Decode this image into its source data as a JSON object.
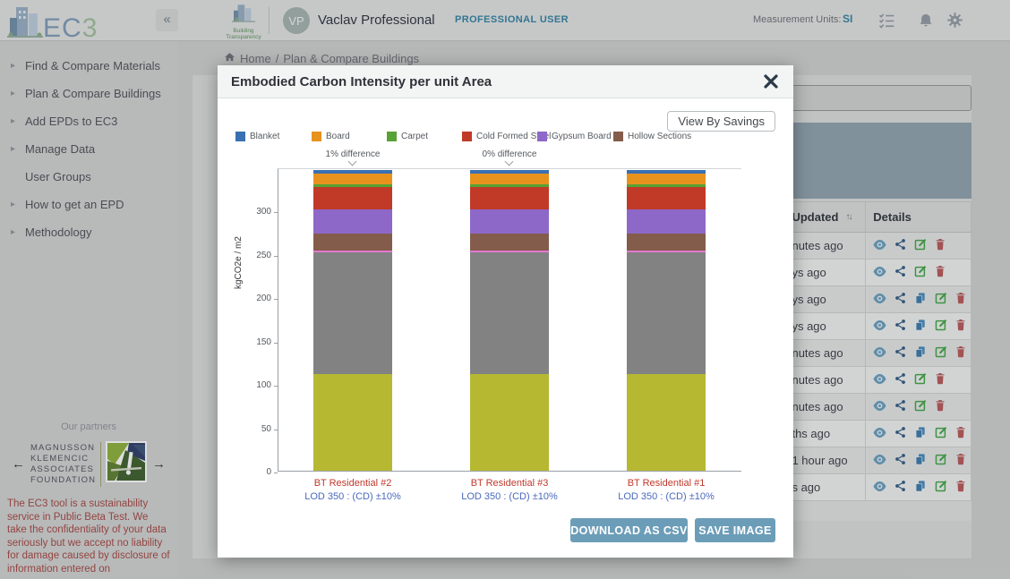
{
  "header": {
    "logo_ec": "EC",
    "logo_3": "3",
    "collapse_label": "«",
    "brand_line1": "Building",
    "brand_line2": "Transparency",
    "avatar_initials": "VP",
    "user_name": "Vaclav Professional",
    "user_role": "PROFESSIONAL USER",
    "measurement_label": "Measurement Units:",
    "measurement_value": "SI"
  },
  "sidebar": {
    "items": [
      {
        "label": "Find & Compare Materials",
        "has_arrow": true
      },
      {
        "label": "Plan & Compare Buildings",
        "has_arrow": true
      },
      {
        "label": "Add EPDs to EC3",
        "has_arrow": true
      },
      {
        "label": "Manage Data",
        "has_arrow": true
      },
      {
        "label": "User Groups",
        "has_arrow": false
      },
      {
        "label": "How to get an EPD",
        "has_arrow": true
      },
      {
        "label": "Methodology",
        "has_arrow": true
      }
    ],
    "partners_title": "Our partners",
    "partner_name_lines": [
      "MAGNUSSON",
      "KLEMENCIC",
      "ASSOCIATES",
      "FOUNDATION"
    ],
    "disclaimer": "The EC3 tool is a sustainability service in Public Beta Test. We take the confidentiality of your data seriously but we accept no liability for damage caused by disclosure of information entered on"
  },
  "breadcrumb": {
    "home": "Home",
    "separator": "/",
    "current": "Plan & Compare Buildings"
  },
  "table": {
    "columns": [
      "Updated",
      "Details"
    ],
    "rows": [
      {
        "updated": "nutes ago",
        "actions": [
          "view",
          "share",
          "edit",
          "delete"
        ]
      },
      {
        "updated": "ys ago",
        "actions": [
          "view",
          "share",
          "edit",
          "delete"
        ]
      },
      {
        "updated": "ys ago",
        "actions": [
          "view",
          "share",
          "copy",
          "edit",
          "delete"
        ]
      },
      {
        "updated": "ys ago",
        "actions": [
          "view",
          "share",
          "copy",
          "edit",
          "delete"
        ]
      },
      {
        "updated": "nutes ago",
        "actions": [
          "view",
          "share",
          "copy",
          "edit",
          "delete"
        ]
      },
      {
        "updated": "nutes ago",
        "actions": [
          "view",
          "share",
          "edit",
          "delete"
        ]
      },
      {
        "updated": "nutes ago",
        "actions": [
          "view",
          "share",
          "edit",
          "delete"
        ]
      },
      {
        "updated": "ths ago",
        "actions": [
          "view",
          "share",
          "copy",
          "edit",
          "delete"
        ]
      },
      {
        "updated": "1 hour ago",
        "actions": [
          "view",
          "share",
          "copy",
          "edit",
          "delete"
        ]
      },
      {
        "updated": "s ago",
        "actions": [
          "view",
          "share",
          "copy",
          "edit",
          "delete"
        ]
      }
    ]
  },
  "modal": {
    "title": "Embodied Carbon Intensity per unit Area",
    "view_by_savings_label": "View By Savings",
    "download_csv_label": "DOWNLOAD AS CSV",
    "save_image_label": "SAVE IMAGE"
  },
  "chart_data": {
    "type": "bar",
    "stacked": true,
    "title": "Embodied Carbon Intensity per unit Area",
    "ylabel": "kgCO2e / m2",
    "ylim": [
      0,
      350
    ],
    "yticks": [
      0,
      50,
      100,
      150,
      200,
      250,
      300
    ],
    "grid": false,
    "legend_position": "top",
    "legend": [
      {
        "label": "Blanket",
        "color": "#3a70b2"
      },
      {
        "label": "Board",
        "color": "#e8921e"
      },
      {
        "label": "Carpet",
        "color": "#56a234"
      },
      {
        "label": "Cold Formed Steel",
        "color": "#c03a27"
      },
      {
        "label": "Gypsum Board",
        "color": "#8d68c8"
      },
      {
        "label": "Hollow Sections",
        "color": "#835c4b"
      }
    ],
    "categories": [
      {
        "name": "BT Residential #2",
        "sublabel": "LOD 350 : (CD) ±10%",
        "annotation": "1% difference"
      },
      {
        "name": "BT Residential #3",
        "sublabel": "LOD 350 : (CD) ±10%",
        "annotation": "0% difference"
      },
      {
        "name": "BT Residential #1",
        "sublabel": "LOD 350 : (CD) ±10%",
        "annotation": null
      }
    ],
    "series_bottom_to_top": [
      {
        "name": "unlabeled-yellow-segment",
        "color": "#b6b832",
        "values": [
          112,
          112,
          112
        ]
      },
      {
        "name": "unlabeled-gray-segment",
        "color": "#828282",
        "values": [
          140,
          140,
          140
        ]
      },
      {
        "name": "unlabeled-pink-segment",
        "color": "#e278cf",
        "values": [
          2,
          2,
          2
        ]
      },
      {
        "name": "Hollow Sections",
        "color": "#835c4b",
        "values": [
          20,
          20,
          20
        ]
      },
      {
        "name": "Gypsum Board",
        "color": "#8d68c8",
        "values": [
          28,
          28,
          28
        ]
      },
      {
        "name": "Cold Formed Steel",
        "color": "#c03a27",
        "values": [
          25,
          25,
          25
        ]
      },
      {
        "name": "Carpet",
        "color": "#56a234",
        "values": [
          3,
          3,
          3
        ]
      },
      {
        "name": "Board",
        "color": "#e8921e",
        "values": [
          13,
          13,
          13
        ]
      },
      {
        "name": "Blanket",
        "color": "#3a70b2",
        "values": [
          4,
          4,
          4
        ]
      }
    ]
  }
}
